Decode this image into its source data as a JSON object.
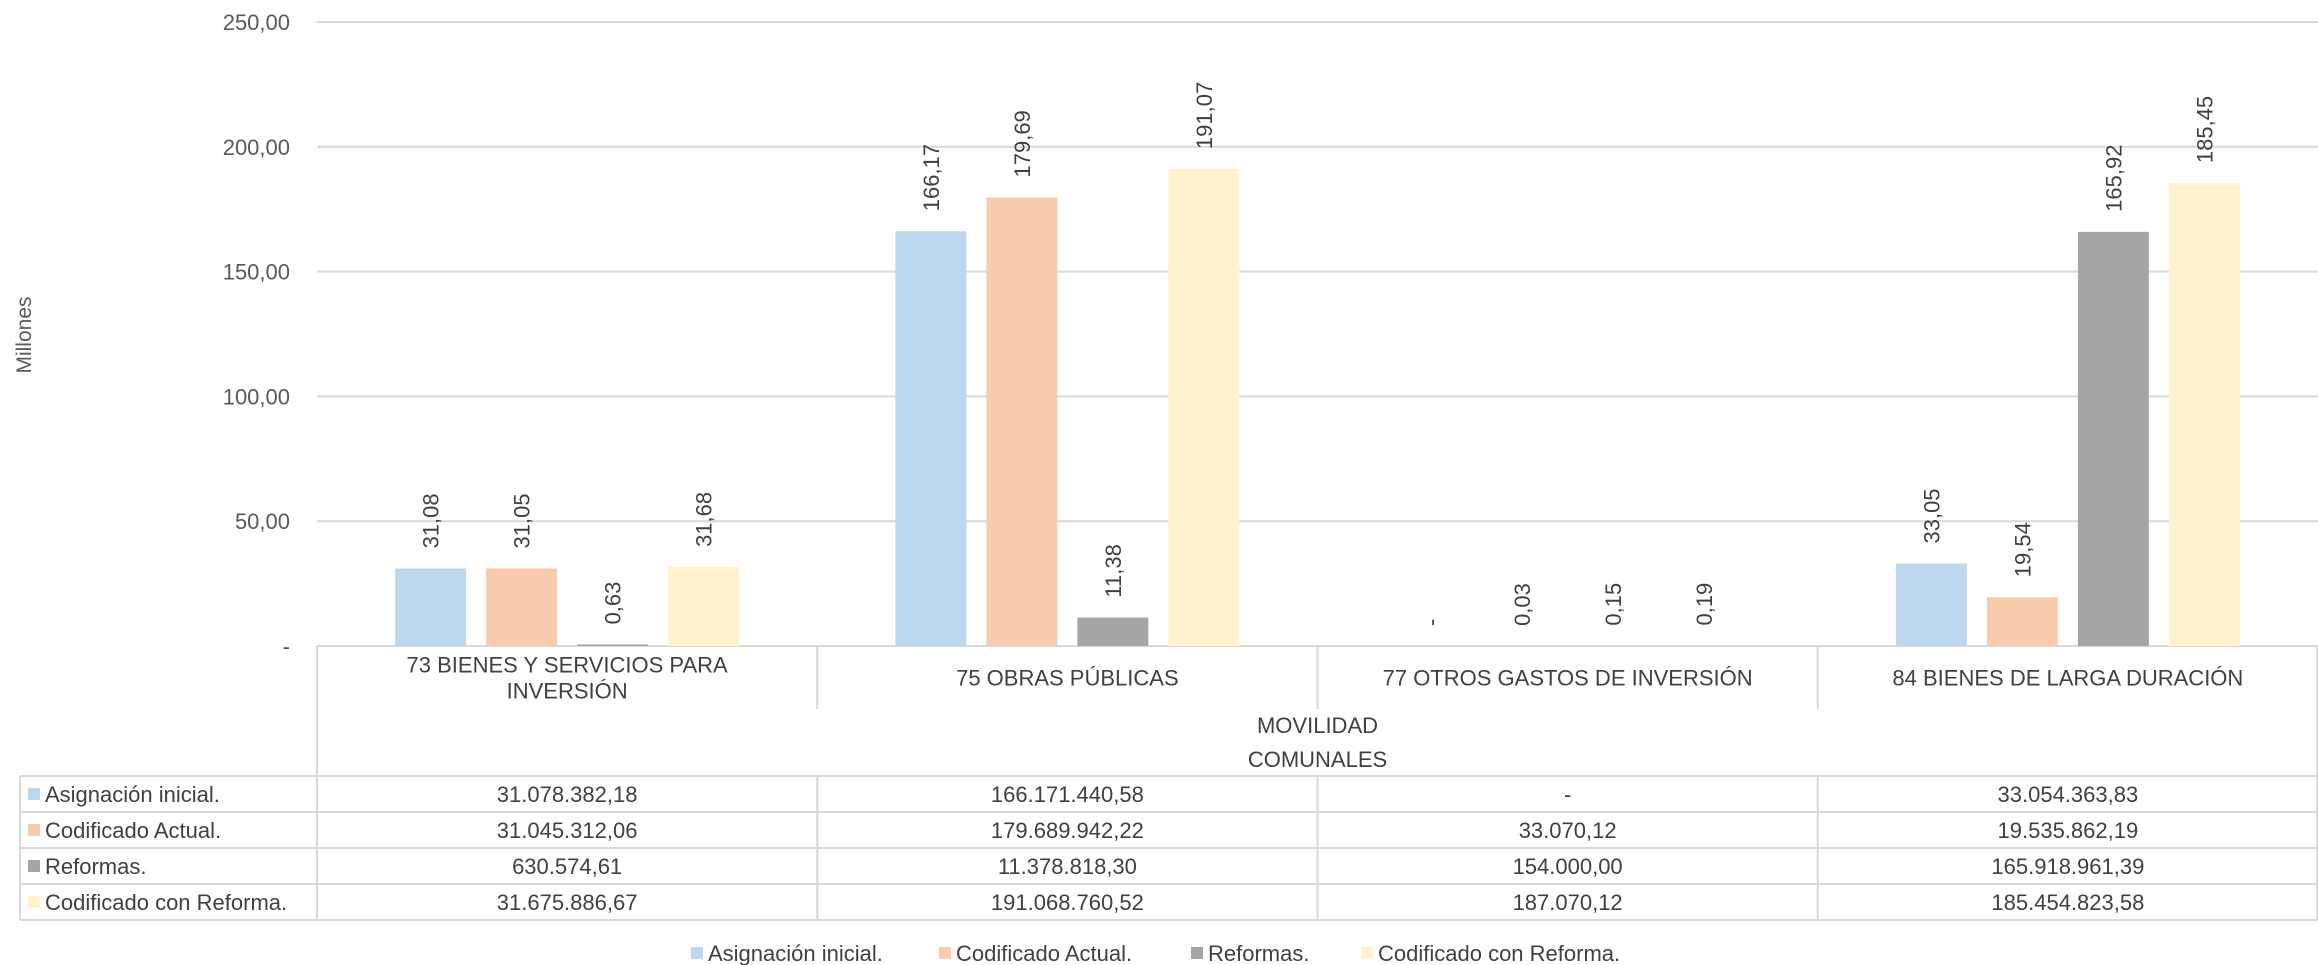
{
  "chart_data": {
    "type": "bar",
    "ylabel": "Millones",
    "ylim": [
      0,
      250
    ],
    "yticks": [
      "-",
      "50,00",
      "100,00",
      "150,00",
      "200,00",
      "250,00"
    ],
    "ytick_values": [
      0,
      50,
      100,
      150,
      200,
      250
    ],
    "grid": true,
    "legend_position": "bottom",
    "categories": [
      "73 BIENES Y SERVICIOS PARA INVERSIÓN",
      "75 OBRAS PÚBLICAS",
      "77 OTROS GASTOS DE INVERSIÓN",
      "84 BIENES DE LARGA DURACIÓN"
    ],
    "category_lines": [
      [
        "73 BIENES Y SERVICIOS PARA",
        "INVERSIÓN"
      ],
      [
        "75 OBRAS PÚBLICAS"
      ],
      [
        "77 OTROS GASTOS DE INVERSIÓN"
      ],
      [
        "84 BIENES DE LARGA DURACIÓN"
      ]
    ],
    "group_labels": [
      "MOVILIDAD",
      "COMUNALES"
    ],
    "series": [
      {
        "name": "Asignación inicial.",
        "color": "#BDD7EE",
        "values": [
          31.08,
          166.17,
          0,
          33.05
        ],
        "labels": [
          "31,08",
          "166,17",
          "-",
          "33,05"
        ],
        "table": [
          "31.078.382,18",
          "166.171.440,58",
          "-",
          "33.054.363,83"
        ]
      },
      {
        "name": "Codificado Actual.",
        "color": "#F8CBAD",
        "values": [
          31.05,
          179.69,
          0.03,
          19.54
        ],
        "labels": [
          "31,05",
          "179,69",
          "0,03",
          "19,54"
        ],
        "table": [
          "31.045.312,06",
          "179.689.942,22",
          "33.070,12",
          "19.535.862,19"
        ]
      },
      {
        "name": "Reformas.",
        "color": "#A5A5A5",
        "values": [
          0.63,
          11.38,
          0.15,
          165.92
        ],
        "labels": [
          "0,63",
          "11,38",
          "0,15",
          "165,92"
        ],
        "table": [
          "630.574,61",
          "11.378.818,30",
          "154.000,00",
          "165.918.961,39"
        ]
      },
      {
        "name": "Codificado con Reforma.",
        "color": "#FFF2CC",
        "values": [
          31.68,
          191.07,
          0.19,
          185.45
        ],
        "labels": [
          "31,68",
          "191,07",
          "0,19",
          "185,45"
        ],
        "table": [
          "31.675.886,67",
          "191.068.760,52",
          "187.070,12",
          "185.454.823,58"
        ]
      }
    ]
  }
}
